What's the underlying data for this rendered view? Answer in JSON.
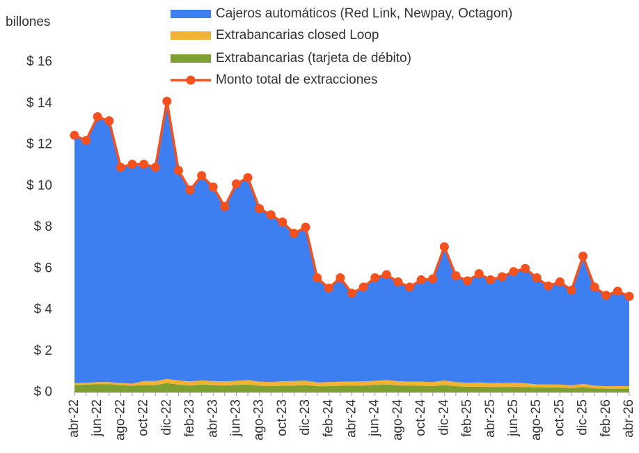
{
  "chart_data": {
    "type": "area",
    "stacked": true,
    "y_label": "billones",
    "categories": [
      "abr-22",
      null,
      "jun-22",
      null,
      "ago-22",
      null,
      "oct-22",
      null,
      "dic-22",
      null,
      "feb-23",
      null,
      "abr-23",
      null,
      "jun-23",
      null,
      "ago-23",
      null,
      "oct-23",
      null,
      "dic-23",
      null,
      "feb-24",
      null,
      "abr-24",
      null,
      "jun-24",
      null,
      "ago-24",
      null,
      "oct-24",
      null,
      "dic-24",
      null,
      "feb-25",
      null,
      "abr-25",
      null,
      "jun-25",
      null,
      "ago-25",
      null,
      "oct-25",
      null,
      "dic-25",
      null,
      "feb-26",
      null,
      "abr-26"
    ],
    "series": [
      {
        "name": "Cajeros automáticos (Red Link, Newpay, Octagon)",
        "color": "#3d7ff0",
        "values": [
          12.0,
          11.73,
          12.85,
          12.65,
          10.45,
          10.63,
          10.5,
          10.35,
          13.45,
          10.17,
          9.27,
          9.92,
          9.4,
          8.47,
          9.54,
          9.8,
          8.38,
          8.1,
          7.71,
          7.15,
          7.43,
          5.07,
          4.55,
          5.03,
          4.28,
          4.57,
          4.99,
          5.1,
          4.81,
          4.58,
          4.93,
          5.0,
          6.47,
          5.15,
          4.93,
          5.27,
          4.99,
          5.14,
          5.38,
          5.56,
          5.16,
          4.77,
          4.97,
          4.61,
          6.19,
          4.77,
          4.4,
          4.59,
          4.35
        ]
      },
      {
        "name": "Extrabancarias closed Loop",
        "color": "#f2b233",
        "values": [
          0.1,
          0.1,
          0.1,
          0.1,
          0.1,
          0.1,
          0.2,
          0.2,
          0.2,
          0.2,
          0.2,
          0.2,
          0.2,
          0.2,
          0.2,
          0.22,
          0.2,
          0.2,
          0.22,
          0.22,
          0.22,
          0.18,
          0.2,
          0.2,
          0.2,
          0.2,
          0.2,
          0.22,
          0.2,
          0.2,
          0.2,
          0.2,
          0.22,
          0.2,
          0.2,
          0.2,
          0.2,
          0.2,
          0.2,
          0.18,
          0.15,
          0.15,
          0.15,
          0.13,
          0.15,
          0.13,
          0.12,
          0.13,
          0.12
        ]
      },
      {
        "name": "Extrabancarias (tarjeta de débito)",
        "color": "#7e9f32",
        "values": [
          0.35,
          0.37,
          0.4,
          0.4,
          0.35,
          0.32,
          0.35,
          0.35,
          0.45,
          0.38,
          0.33,
          0.38,
          0.35,
          0.33,
          0.36,
          0.38,
          0.32,
          0.3,
          0.32,
          0.33,
          0.35,
          0.3,
          0.3,
          0.32,
          0.32,
          0.33,
          0.36,
          0.38,
          0.34,
          0.32,
          0.32,
          0.3,
          0.36,
          0.3,
          0.27,
          0.28,
          0.26,
          0.26,
          0.27,
          0.26,
          0.24,
          0.23,
          0.23,
          0.21,
          0.26,
          0.2,
          0.18,
          0.18,
          0.18
        ]
      },
      {
        "name": "Monto total de extracciones",
        "type": "line",
        "color": "#f4511e",
        "values": [
          12.45,
          12.2,
          13.35,
          13.15,
          10.9,
          11.05,
          11.05,
          10.9,
          14.1,
          10.75,
          9.8,
          10.5,
          9.95,
          9.0,
          10.1,
          10.4,
          8.9,
          8.6,
          8.25,
          7.7,
          8.0,
          5.55,
          5.05,
          5.55,
          4.8,
          5.1,
          5.55,
          5.7,
          5.35,
          5.1,
          5.45,
          5.5,
          7.05,
          5.65,
          5.4,
          5.75,
          5.45,
          5.6,
          5.85,
          6.0,
          5.55,
          5.15,
          5.35,
          4.95,
          6.6,
          5.1,
          4.7,
          4.9,
          4.65
        ]
      }
    ],
    "ylim": [
      0,
      16
    ],
    "yticks": [
      {
        "value": 0,
        "label": "$ 0"
      },
      {
        "value": 2,
        "label": "$ 2"
      },
      {
        "value": 4,
        "label": "$ 4"
      },
      {
        "value": 6,
        "label": "$ 6"
      },
      {
        "value": 8,
        "label": "$ 8"
      },
      {
        "value": 10,
        "label": "$ 10"
      },
      {
        "value": 12,
        "label": "$ 12"
      },
      {
        "value": 14,
        "label": "$ 14"
      },
      {
        "value": 16,
        "label": "$ 16"
      }
    ],
    "grid": false,
    "legend": "top"
  }
}
